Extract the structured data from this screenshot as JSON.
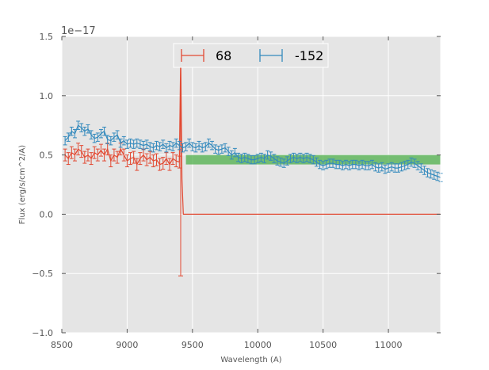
{
  "chart_data": {
    "type": "line",
    "title": "",
    "xlabel": "Wavelength (A)",
    "ylabel": "Flux (erg/s/cm^2/A)",
    "offset_label": "1e−17",
    "xlim": [
      8500,
      11400
    ],
    "ylim": [
      -1.0,
      1.5
    ],
    "x_ticks": [
      "8500",
      "9000",
      "9500",
      "10000",
      "10500",
      "11000"
    ],
    "y_ticks": [
      "−1.0",
      "−0.5",
      "0.0",
      "0.5",
      "1.0",
      "1.5"
    ],
    "grid": true,
    "legend_position": "top-center",
    "band": {
      "x_start": 9450,
      "x_end": 11400,
      "y_low": 0.42,
      "y_high": 0.5,
      "color": "#4daf4a"
    },
    "series": [
      {
        "name": "68",
        "color": "#e24a33",
        "x": [
          8525,
          8550,
          8575,
          8600,
          8625,
          8650,
          8675,
          8700,
          8725,
          8750,
          8775,
          8800,
          8825,
          8850,
          8875,
          8900,
          8925,
          8950,
          8975,
          9000,
          9025,
          9050,
          9075,
          9100,
          9125,
          9150,
          9175,
          9200,
          9225,
          9250,
          9275,
          9300,
          9325,
          9350,
          9375,
          9400
        ],
        "y": [
          0.5,
          0.47,
          0.52,
          0.5,
          0.55,
          0.53,
          0.48,
          0.5,
          0.47,
          0.52,
          0.5,
          0.54,
          0.5,
          0.55,
          0.45,
          0.5,
          0.48,
          0.55,
          0.5,
          0.45,
          0.47,
          0.48,
          0.42,
          0.47,
          0.5,
          0.46,
          0.48,
          0.45,
          0.46,
          0.42,
          0.43,
          0.47,
          0.42,
          0.47,
          0.45,
          0.44
        ],
        "err": 0.05,
        "tail_x": [
          9400,
          9410,
          9420,
          9430,
          11400
        ],
        "tail_y": [
          0.44,
          1.35,
          0.3,
          0.0,
          0.0
        ],
        "spike": {
          "x": 9410,
          "y_low": -0.52,
          "y_high": 1.35
        }
      },
      {
        "name": "-152",
        "color": "#348abd",
        "x": [
          8525,
          8550,
          8575,
          8600,
          8625,
          8650,
          8675,
          8700,
          8725,
          8750,
          8775,
          8800,
          8825,
          8850,
          8875,
          8900,
          8925,
          8950,
          8975,
          9000,
          9025,
          9050,
          9075,
          9100,
          9125,
          9150,
          9175,
          9200,
          9225,
          9250,
          9275,
          9300,
          9325,
          9350,
          9375,
          9400,
          9425,
          9450,
          9475,
          9500,
          9525,
          9550,
          9575,
          9600,
          9625,
          9650,
          9675,
          9700,
          9725,
          9750,
          9775,
          9800,
          9825,
          9850,
          9875,
          9900,
          9925,
          9950,
          9975,
          10000,
          10025,
          10050,
          10075,
          10100,
          10125,
          10150,
          10175,
          10200,
          10225,
          10250,
          10275,
          10300,
          10325,
          10350,
          10375,
          10400,
          10425,
          10450,
          10475,
          10500,
          10525,
          10550,
          10575,
          10600,
          10625,
          10650,
          10675,
          10700,
          10725,
          10750,
          10775,
          10800,
          10825,
          10850,
          10875,
          10900,
          10925,
          10950,
          10975,
          11000,
          11025,
          11050,
          11075,
          11100,
          11125,
          11150,
          11175,
          11200,
          11225,
          11250,
          11275,
          11300,
          11325,
          11350,
          11375,
          11400
        ],
        "y": [
          0.62,
          0.65,
          0.7,
          0.68,
          0.75,
          0.73,
          0.7,
          0.72,
          0.67,
          0.64,
          0.65,
          0.68,
          0.7,
          0.63,
          0.62,
          0.65,
          0.67,
          0.6,
          0.62,
          0.59,
          0.6,
          0.59,
          0.6,
          0.59,
          0.58,
          0.59,
          0.57,
          0.56,
          0.58,
          0.57,
          0.59,
          0.56,
          0.58,
          0.57,
          0.6,
          0.58,
          0.56,
          0.57,
          0.6,
          0.57,
          0.56,
          0.58,
          0.56,
          0.57,
          0.6,
          0.58,
          0.55,
          0.54,
          0.55,
          0.56,
          0.53,
          0.5,
          0.52,
          0.48,
          0.47,
          0.48,
          0.47,
          0.46,
          0.46,
          0.47,
          0.48,
          0.47,
          0.5,
          0.49,
          0.47,
          0.45,
          0.44,
          0.43,
          0.45,
          0.47,
          0.48,
          0.47,
          0.48,
          0.47,
          0.48,
          0.47,
          0.46,
          0.44,
          0.42,
          0.41,
          0.42,
          0.43,
          0.43,
          0.42,
          0.42,
          0.41,
          0.42,
          0.41,
          0.42,
          0.42,
          0.41,
          0.42,
          0.41,
          0.41,
          0.42,
          0.4,
          0.39,
          0.4,
          0.38,
          0.39,
          0.4,
          0.39,
          0.39,
          0.4,
          0.41,
          0.42,
          0.44,
          0.43,
          0.41,
          0.39,
          0.37,
          0.35,
          0.34,
          0.33,
          0.32,
          0.31
        ],
        "err": 0.035
      }
    ]
  }
}
